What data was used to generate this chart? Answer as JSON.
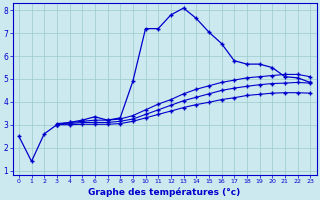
{
  "xlabel": "Graphe des températures (°c)",
  "xlim": [
    -0.5,
    23.5
  ],
  "ylim": [
    0.8,
    8.3
  ],
  "xticks": [
    0,
    1,
    2,
    3,
    4,
    5,
    6,
    7,
    8,
    9,
    10,
    11,
    12,
    13,
    14,
    15,
    16,
    17,
    18,
    19,
    20,
    21,
    22,
    23
  ],
  "yticks": [
    1,
    2,
    3,
    4,
    5,
    6,
    7,
    8
  ],
  "background_color": "#cce9f0",
  "line_color": "#0000cc",
  "grid_color": "#99cccc",
  "line1": {
    "x": [
      0,
      1,
      2,
      3,
      4,
      5,
      6,
      7,
      8,
      9,
      10,
      11,
      12,
      13,
      14,
      15,
      16,
      17,
      18,
      19,
      20,
      21,
      22,
      23
    ],
    "y": [
      2.5,
      1.4,
      2.6,
      3.0,
      3.1,
      3.2,
      3.35,
      3.2,
      3.3,
      4.9,
      7.2,
      7.2,
      7.8,
      8.1,
      7.65,
      7.05,
      6.55,
      5.8,
      5.65,
      5.65,
      5.5,
      5.1,
      5.05,
      4.85
    ]
  },
  "line2": {
    "x": [
      3,
      4,
      5,
      6,
      7,
      8,
      9,
      10,
      11,
      12,
      13,
      14,
      15,
      16,
      17,
      18,
      19,
      20,
      21,
      22,
      23
    ],
    "y": [
      3.05,
      3.1,
      3.15,
      3.2,
      3.2,
      3.25,
      3.4,
      3.65,
      3.9,
      4.1,
      4.35,
      4.55,
      4.7,
      4.85,
      4.95,
      5.05,
      5.1,
      5.15,
      5.2,
      5.2,
      5.1
    ]
  },
  "line3": {
    "x": [
      3,
      4,
      5,
      6,
      7,
      8,
      9,
      10,
      11,
      12,
      13,
      14,
      15,
      16,
      17,
      18,
      19,
      20,
      21,
      22,
      23
    ],
    "y": [
      3.0,
      3.05,
      3.1,
      3.1,
      3.1,
      3.15,
      3.25,
      3.45,
      3.65,
      3.85,
      4.05,
      4.2,
      4.35,
      4.5,
      4.6,
      4.68,
      4.75,
      4.8,
      4.82,
      4.85,
      4.82
    ]
  },
  "line4": {
    "x": [
      3,
      4,
      5,
      6,
      7,
      8,
      9,
      10,
      11,
      12,
      13,
      14,
      15,
      16,
      17,
      18,
      19,
      20,
      21,
      22,
      23
    ],
    "y": [
      3.0,
      3.0,
      3.02,
      3.02,
      3.02,
      3.05,
      3.15,
      3.3,
      3.45,
      3.6,
      3.75,
      3.88,
      3.98,
      4.1,
      4.18,
      4.28,
      4.33,
      4.38,
      4.4,
      4.4,
      4.38
    ]
  }
}
